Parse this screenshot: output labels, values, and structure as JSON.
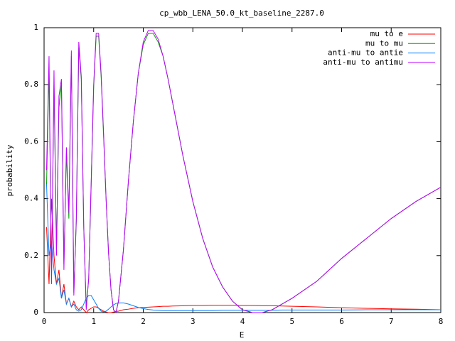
{
  "chart_data": {
    "type": "line",
    "title": "cp_wbb_LENA_50.0_kt_baseline_2287.0",
    "x_label": "E",
    "y_label": "probability",
    "xlim": [
      0,
      8
    ],
    "ylim": [
      0,
      1
    ],
    "xticks": [
      0,
      1,
      2,
      3,
      4,
      5,
      6,
      7,
      8
    ],
    "yticks": [
      0,
      0.2,
      0.4,
      0.6,
      0.8,
      1
    ],
    "grid": false,
    "legend": "top-right",
    "x": [
      0.05,
      0.1,
      0.15,
      0.2,
      0.25,
      0.3,
      0.35,
      0.4,
      0.45,
      0.5,
      0.55,
      0.6,
      0.65,
      0.7,
      0.75,
      0.8,
      0.85,
      0.9,
      0.95,
      1.0,
      1.05,
      1.1,
      1.15,
      1.2,
      1.25,
      1.3,
      1.35,
      1.4,
      1.45,
      1.5,
      1.6,
      1.7,
      1.8,
      1.9,
      2.0,
      2.1,
      2.2,
      2.3,
      2.4,
      2.5,
      2.6,
      2.8,
      3.0,
      3.2,
      3.4,
      3.6,
      3.8,
      4.0,
      4.2,
      4.4,
      4.6,
      4.8,
      5.0,
      5.5,
      6.0,
      6.5,
      7.0,
      7.5,
      8.0
    ],
    "series": [
      {
        "name": "mu to e",
        "color": "#ff0000",
        "values": [
          0.3,
          0.1,
          0.4,
          0.2,
          0.1,
          0.15,
          0.05,
          0.1,
          0.03,
          0.05,
          0.02,
          0.04,
          0.02,
          0.01,
          0.02,
          0.01,
          0.0,
          0.01,
          0.015,
          0.02,
          0.02,
          0.015,
          0.01,
          0.005,
          0.002,
          0.0,
          0.0,
          0.002,
          0.004,
          0.005,
          0.01,
          0.012,
          0.015,
          0.017,
          0.018,
          0.019,
          0.02,
          0.021,
          0.022,
          0.022,
          0.023,
          0.024,
          0.025,
          0.025,
          0.026,
          0.026,
          0.026,
          0.025,
          0.025,
          0.024,
          0.024,
          0.023,
          0.022,
          0.02,
          0.017,
          0.015,
          0.013,
          0.012,
          0.01
        ]
      },
      {
        "name": "mu to mu",
        "color": "#00a000",
        "values": [
          0.45,
          0.85,
          0.12,
          0.8,
          0.22,
          0.72,
          0.8,
          0.17,
          0.56,
          0.33,
          0.9,
          0.07,
          0.32,
          0.93,
          0.82,
          0.3,
          0.02,
          0.12,
          0.45,
          0.79,
          0.97,
          0.97,
          0.83,
          0.62,
          0.4,
          0.21,
          0.08,
          0.01,
          0.0,
          0.04,
          0.22,
          0.46,
          0.67,
          0.84,
          0.94,
          0.98,
          0.98,
          0.95,
          0.9,
          0.82,
          0.73,
          0.55,
          0.39,
          0.26,
          0.16,
          0.09,
          0.04,
          0.01,
          0.0,
          0.0,
          0.01,
          0.03,
          0.05,
          0.11,
          0.19,
          0.26,
          0.33,
          0.39,
          0.44
        ]
      },
      {
        "name": "anti-mu to antie",
        "color": "#0080ff",
        "values": [
          0.45,
          0.2,
          0.25,
          0.15,
          0.1,
          0.12,
          0.05,
          0.08,
          0.03,
          0.05,
          0.02,
          0.03,
          0.01,
          0.005,
          0.01,
          0.03,
          0.05,
          0.06,
          0.06,
          0.045,
          0.03,
          0.015,
          0.005,
          0.002,
          0.005,
          0.012,
          0.02,
          0.027,
          0.032,
          0.034,
          0.034,
          0.03,
          0.024,
          0.018,
          0.014,
          0.011,
          0.009,
          0.008,
          0.007,
          0.007,
          0.007,
          0.007,
          0.007,
          0.007,
          0.007,
          0.008,
          0.008,
          0.008,
          0.008,
          0.008,
          0.008,
          0.009,
          0.009,
          0.009,
          0.009,
          0.01,
          0.01,
          0.01,
          0.01
        ]
      },
      {
        "name": "anti-mu to antimu",
        "color": "#c000ff",
        "values": [
          0.5,
          0.9,
          0.1,
          0.85,
          0.2,
          0.76,
          0.82,
          0.15,
          0.58,
          0.35,
          0.92,
          0.06,
          0.33,
          0.95,
          0.83,
          0.3,
          0.01,
          0.12,
          0.46,
          0.8,
          0.98,
          0.98,
          0.84,
          0.63,
          0.4,
          0.21,
          0.08,
          0.01,
          0.0,
          0.04,
          0.22,
          0.46,
          0.67,
          0.84,
          0.95,
          0.99,
          0.99,
          0.96,
          0.9,
          0.82,
          0.73,
          0.55,
          0.39,
          0.26,
          0.16,
          0.09,
          0.04,
          0.01,
          0.0,
          0.0,
          0.01,
          0.03,
          0.05,
          0.11,
          0.19,
          0.26,
          0.33,
          0.39,
          0.44
        ]
      }
    ]
  }
}
